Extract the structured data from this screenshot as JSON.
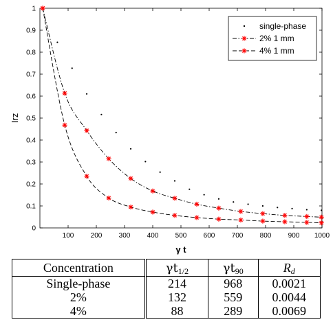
{
  "chart_data": {
    "type": "scatter",
    "title": "",
    "xlabel": "γ t",
    "ylabel": "Irz",
    "xlim": [
      0,
      1000
    ],
    "ylim": [
      0,
      1
    ],
    "xticks": [
      100,
      200,
      300,
      400,
      500,
      600,
      700,
      800,
      900,
      1000
    ],
    "xtick_labels": [
      "100",
      "200",
      "300",
      "400",
      "500",
      "600",
      "700",
      "800",
      "900",
      "1000"
    ],
    "yticks": [
      0,
      0.1,
      0.2,
      0.3,
      0.4,
      0.5,
      0.6,
      0.7,
      0.8,
      0.9,
      1
    ],
    "ytick_labels": [
      "0",
      "0.1",
      "0.2",
      "0.3",
      "0.4",
      "0.5",
      "0.6",
      "0.7",
      "0.8",
      "0.9",
      "1"
    ],
    "legend_position": "top-right",
    "grid": false,
    "series": [
      {
        "name": "single-phase",
        "style": "dots",
        "color": "#000000",
        "x": [
          10,
          62,
          114,
          166,
          218,
          270,
          322,
          374,
          426,
          478,
          530,
          582,
          634,
          686,
          738,
          790,
          842,
          894,
          946,
          998
        ],
        "y": [
          1.0,
          0.845,
          0.727,
          0.61,
          0.516,
          0.434,
          0.36,
          0.302,
          0.254,
          0.214,
          0.176,
          0.151,
          0.132,
          0.118,
          0.108,
          0.1,
          0.093,
          0.088,
          0.083,
          0.08
        ]
      },
      {
        "name": "2% 1 mm",
        "style": "dash-dot line with star markers",
        "color": "#ff0000",
        "line_color": "#000000",
        "x": [
          10,
          88,
          166,
          244,
          322,
          400,
          478,
          556,
          634,
          712,
          790,
          868,
          946,
          998
        ],
        "y": [
          1.0,
          0.613,
          0.443,
          0.315,
          0.225,
          0.168,
          0.135,
          0.108,
          0.09,
          0.075,
          0.065,
          0.057,
          0.052,
          0.049
        ]
      },
      {
        "name": "4% 1 mm",
        "style": "dashed line with star markers",
        "color": "#ff0000",
        "line_color": "#000000",
        "x": [
          10,
          88,
          166,
          244,
          322,
          400,
          478,
          556,
          634,
          712,
          790,
          868,
          946,
          998
        ],
        "y": [
          1.0,
          0.468,
          0.235,
          0.136,
          0.095,
          0.072,
          0.057,
          0.047,
          0.04,
          0.036,
          0.031,
          0.028,
          0.025,
          0.023
        ]
      }
    ]
  },
  "table": {
    "headers": [
      "Concentration",
      "γt",
      "γt",
      "R"
    ],
    "header_subscripts": [
      "",
      "1/2",
      "90",
      "d"
    ],
    "rows": [
      [
        "Single-phase",
        "214",
        "968",
        "0.0021"
      ],
      [
        "2%",
        "132",
        "559",
        "0.0044"
      ],
      [
        "4%",
        "88",
        "289",
        "0.0069"
      ]
    ]
  }
}
